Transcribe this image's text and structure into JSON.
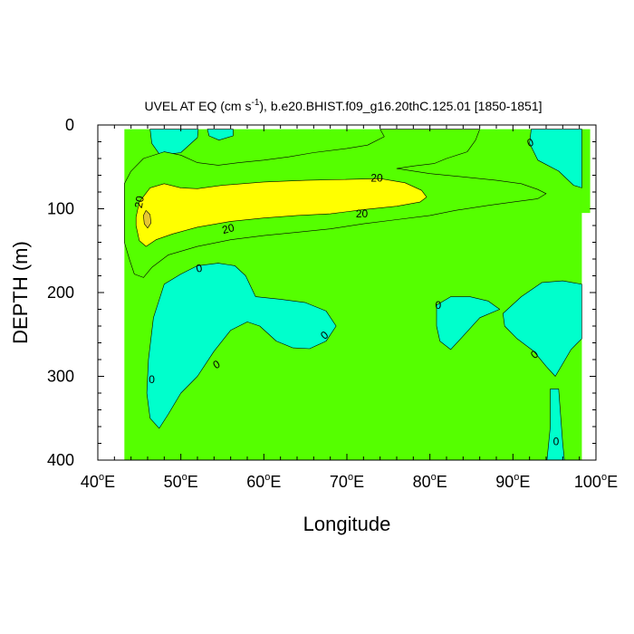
{
  "chart_data": {
    "type": "contour",
    "title": {
      "prefix": "UVEL AT EQ (cm s",
      "superscript": "-1",
      "suffix": "), b.e20.BHIST.f09_g16.20thC.125.01 [1850-1851]"
    },
    "xlabel": "Longitude",
    "ylabel": "DEPTH (m)",
    "xlim": [
      40,
      100
    ],
    "ylim": [
      0,
      400
    ],
    "y_reversed": true,
    "x_ticks": [
      {
        "value": 40,
        "num": "40",
        "sup": "o",
        "suffix": "E"
      },
      {
        "value": 50,
        "num": "50",
        "sup": "o",
        "suffix": "E"
      },
      {
        "value": 60,
        "num": "60",
        "sup": "o",
        "suffix": "E"
      },
      {
        "value": 70,
        "num": "70",
        "sup": "o",
        "suffix": "E"
      },
      {
        "value": 80,
        "num": "80",
        "sup": "o",
        "suffix": "E"
      },
      {
        "value": 90,
        "num": "90",
        "sup": "o",
        "suffix": "E"
      },
      {
        "value": 100,
        "num": "100",
        "sup": "o",
        "suffix": "E"
      }
    ],
    "y_ticks": [
      0,
      100,
      200,
      300,
      400
    ],
    "contour_levels": [
      0,
      20
    ],
    "fill_colors": {
      "below_0": "#00ffcc",
      "0_to_20": "#55ff00",
      "20_to_40": "#ffff00",
      "above_40": "#e6c832"
    },
    "data_extent": {
      "lon_min": 43.2,
      "lon_max": 98.3,
      "depth_max": 400,
      "east_band_lon_max": 99.3,
      "east_band_depth_max": 105
    },
    "regions": [
      {
        "name": "westward-flow-top-left",
        "level": "below_0",
        "points": [
          [
            46.3,
            5
          ],
          [
            52.1,
            5
          ],
          [
            52.0,
            15
          ],
          [
            50.0,
            33
          ],
          [
            47.5,
            36
          ],
          [
            46.5,
            22
          ],
          [
            46.3,
            5
          ]
        ]
      },
      {
        "name": "westward-flow-top-center",
        "level": "below_0",
        "points": [
          [
            53.2,
            5
          ],
          [
            56.3,
            5
          ],
          [
            56.3,
            13
          ],
          [
            54.6,
            18
          ],
          [
            53.4,
            13
          ],
          [
            53.2,
            5
          ]
        ]
      },
      {
        "name": "westward-flow-northeast",
        "level": "below_0",
        "points": [
          [
            92.2,
            5
          ],
          [
            98.3,
            5
          ],
          [
            98.3,
            75
          ],
          [
            97.3,
            72
          ],
          [
            95.5,
            55
          ],
          [
            93.0,
            42
          ],
          [
            92.0,
            22
          ],
          [
            92.2,
            5
          ]
        ]
      },
      {
        "name": "westward-flow-southwest",
        "level": "below_0",
        "points": [
          [
            48.0,
            190
          ],
          [
            50.0,
            178
          ],
          [
            52.0,
            168
          ],
          [
            54.5,
            165
          ],
          [
            56.5,
            168
          ],
          [
            57.8,
            180
          ],
          [
            59.0,
            205
          ],
          [
            62.0,
            208
          ],
          [
            65.0,
            212
          ],
          [
            67.5,
            222
          ],
          [
            68.7,
            240
          ],
          [
            67.5,
            258
          ],
          [
            65.5,
            267
          ],
          [
            63.5,
            266
          ],
          [
            61.5,
            258
          ],
          [
            59.5,
            240
          ],
          [
            58.0,
            235
          ],
          [
            56.0,
            245
          ],
          [
            54.0,
            270
          ],
          [
            52.0,
            300
          ],
          [
            50.0,
            320
          ],
          [
            48.5,
            345
          ],
          [
            47.4,
            362
          ],
          [
            46.3,
            350
          ],
          [
            45.9,
            320
          ],
          [
            46.1,
            280
          ],
          [
            46.7,
            230
          ],
          [
            48.0,
            190
          ]
        ]
      },
      {
        "name": "westward-flow-center-east",
        "level": "below_0",
        "points": [
          [
            80.8,
            215
          ],
          [
            82.5,
            205
          ],
          [
            84.8,
            205
          ],
          [
            87.0,
            210
          ],
          [
            88.4,
            220
          ],
          [
            86.0,
            230
          ],
          [
            84.0,
            252
          ],
          [
            82.5,
            268
          ],
          [
            81.2,
            258
          ],
          [
            80.8,
            240
          ],
          [
            80.8,
            215
          ]
        ]
      },
      {
        "name": "westward-flow-southeast",
        "level": "below_0",
        "points": [
          [
            88.8,
            225
          ],
          [
            91.0,
            205
          ],
          [
            93.5,
            188
          ],
          [
            96.0,
            186
          ],
          [
            98.3,
            190
          ],
          [
            98.3,
            255
          ],
          [
            97.0,
            268
          ],
          [
            96.0,
            285
          ],
          [
            95.1,
            300
          ],
          [
            94.0,
            288
          ],
          [
            92.5,
            270
          ],
          [
            90.5,
            255
          ],
          [
            89.0,
            240
          ],
          [
            88.8,
            225
          ]
        ]
      },
      {
        "name": "westward-flow-deep-southeast",
        "level": "below_0",
        "points": [
          [
            94.5,
            315
          ],
          [
            95.5,
            315
          ],
          [
            96.0,
            380
          ],
          [
            96.2,
            400
          ],
          [
            94.1,
            400
          ],
          [
            94.5,
            360
          ],
          [
            94.5,
            315
          ]
        ]
      },
      {
        "name": "undercurrent-outer",
        "level": "0_to_20",
        "points": [
          [
            43.2,
            70
          ],
          [
            44.0,
            55
          ],
          [
            45.5,
            40
          ],
          [
            48.0,
            32
          ],
          [
            50.0,
            36
          ],
          [
            52.0,
            45
          ],
          [
            54.5,
            48
          ],
          [
            57.0,
            45
          ],
          [
            60.0,
            42
          ],
          [
            63.0,
            38
          ],
          [
            66.0,
            33
          ],
          [
            70.0,
            28
          ],
          [
            72.5,
            24
          ],
          [
            74.5,
            14
          ],
          [
            74.0,
            5
          ],
          [
            86.0,
            5
          ],
          [
            85.5,
            18
          ],
          [
            84.5,
            32
          ],
          [
            82.0,
            40
          ],
          [
            80.5,
            46
          ],
          [
            78.0,
            49
          ],
          [
            76.0,
            52
          ],
          [
            80.0,
            58
          ],
          [
            84.0,
            62
          ],
          [
            88.0,
            66
          ],
          [
            91.0,
            70
          ],
          [
            93.0,
            77
          ],
          [
            94.0,
            82
          ],
          [
            93.0,
            88
          ],
          [
            90.0,
            92
          ],
          [
            87.0,
            96
          ],
          [
            83.0,
            102
          ],
          [
            80.0,
            108
          ],
          [
            76.0,
            113
          ],
          [
            72.0,
            118
          ],
          [
            68.0,
            124
          ],
          [
            64.0,
            128
          ],
          [
            60.0,
            132
          ],
          [
            56.0,
            137
          ],
          [
            52.0,
            145
          ],
          [
            48.5,
            155
          ],
          [
            46.5,
            170
          ],
          [
            45.5,
            182
          ],
          [
            44.4,
            178
          ],
          [
            43.8,
            160
          ],
          [
            43.2,
            140
          ],
          [
            43.2,
            70
          ]
        ]
      },
      {
        "name": "undercurrent-core",
        "level": "20_to_40",
        "points": [
          [
            44.6,
            110
          ],
          [
            45.0,
            92
          ],
          [
            46.3,
            75
          ],
          [
            48.0,
            70
          ],
          [
            50.0,
            75
          ],
          [
            52.0,
            76
          ],
          [
            55.0,
            72
          ],
          [
            60.0,
            68
          ],
          [
            65.0,
            66
          ],
          [
            70.0,
            65
          ],
          [
            74.0,
            64
          ],
          [
            77.0,
            69
          ],
          [
            79.0,
            78
          ],
          [
            79.6,
            86
          ],
          [
            78.8,
            92
          ],
          [
            76.0,
            97
          ],
          [
            72.0,
            101
          ],
          [
            68.0,
            106
          ],
          [
            64.0,
            108
          ],
          [
            60.0,
            111
          ],
          [
            56.0,
            115
          ],
          [
            52.0,
            122
          ],
          [
            49.0,
            130
          ],
          [
            47.0,
            137
          ],
          [
            45.8,
            145
          ],
          [
            45.0,
            138
          ],
          [
            44.6,
            120
          ],
          [
            44.6,
            110
          ]
        ]
      },
      {
        "name": "undercurrent-peak",
        "level": "above_40",
        "points": [
          [
            45.8,
            102
          ],
          [
            46.3,
            107
          ],
          [
            46.4,
            117
          ],
          [
            46.0,
            123
          ],
          [
            45.6,
            118
          ],
          [
            45.5,
            108
          ],
          [
            45.8,
            102
          ]
        ]
      }
    ],
    "contour_labels": [
      {
        "text": "20",
        "lon": 45.0,
        "depth": 92,
        "rotate": -80
      },
      {
        "text": "20",
        "lon": 73.6,
        "depth": 63,
        "rotate": 0
      },
      {
        "text": "20",
        "lon": 71.8,
        "depth": 106,
        "rotate": 0
      },
      {
        "text": "20",
        "lon": 55.7,
        "depth": 124,
        "rotate": -15
      },
      {
        "text": "0",
        "lon": 52.2,
        "depth": 171,
        "rotate": -10
      },
      {
        "text": "0",
        "lon": 46.5,
        "depth": 304,
        "rotate": 0
      },
      {
        "text": "0",
        "lon": 54.3,
        "depth": 286,
        "rotate": -30
      },
      {
        "text": "0",
        "lon": 67.3,
        "depth": 251,
        "rotate": -40
      },
      {
        "text": "0",
        "lon": 81.0,
        "depth": 215,
        "rotate": 0
      },
      {
        "text": "0",
        "lon": 92.1,
        "depth": 21,
        "rotate": -20
      },
      {
        "text": "0",
        "lon": 92.6,
        "depth": 274,
        "rotate": -40
      },
      {
        "text": "0",
        "lon": 95.2,
        "depth": 378,
        "rotate": 0
      }
    ]
  }
}
